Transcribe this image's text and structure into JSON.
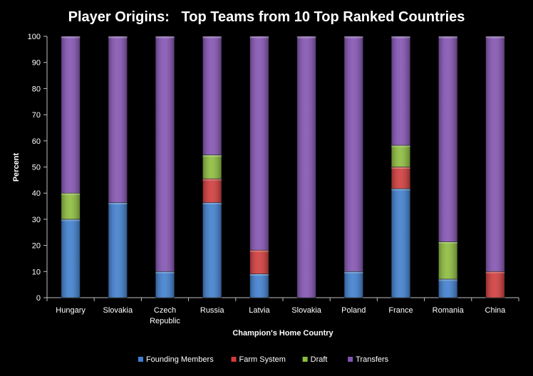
{
  "chart_data": {
    "type": "bar",
    "stacked": true,
    "title": "Player Origins:   Top Teams from 10 Top Ranked Countries",
    "xlabel": "Champion's Home Country",
    "ylabel": "Percent",
    "ylim": [
      0,
      100
    ],
    "yticks": [
      0,
      10,
      20,
      30,
      40,
      50,
      60,
      70,
      80,
      90,
      100
    ],
    "grid": false,
    "legend": "bottom",
    "categories": [
      [
        "Hungary"
      ],
      [
        "Slovakia"
      ],
      [
        "Czech",
        "Republic"
      ],
      [
        "Russia"
      ],
      [
        "Latvia"
      ],
      [
        "Slovakia"
      ],
      [
        "Poland"
      ],
      [
        "France"
      ],
      [
        "Romania"
      ],
      [
        "China"
      ]
    ],
    "series": [
      {
        "name": "Founding Members",
        "color": "#3f7fcf",
        "values": [
          30,
          36.4,
          10,
          36.4,
          9.1,
          0,
          10,
          41.7,
          7.1,
          0
        ]
      },
      {
        "name": "Farm System",
        "color": "#d23a3a",
        "values": [
          0,
          0,
          0,
          9.1,
          9.1,
          0,
          0,
          8.3,
          0,
          10
        ]
      },
      {
        "name": "Draft",
        "color": "#8cbd3c",
        "values": [
          10,
          0,
          0,
          9.1,
          0,
          0,
          0,
          8.3,
          14.3,
          0
        ]
      },
      {
        "name": "Transfers",
        "color": "#8453b3",
        "values": [
          60,
          63.6,
          90,
          45.4,
          81.8,
          100,
          90,
          41.7,
          78.6,
          90
        ]
      }
    ]
  }
}
